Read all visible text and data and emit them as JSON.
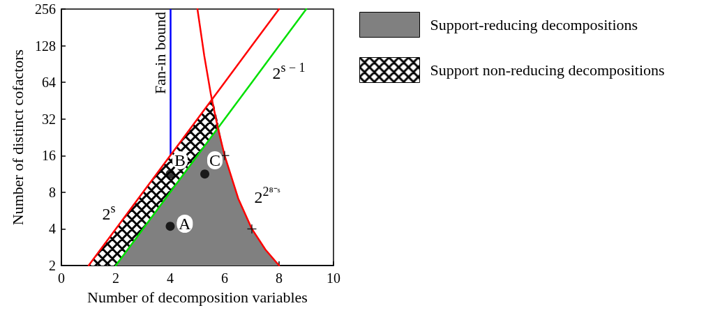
{
  "chart_data": {
    "type": "area",
    "xlabel": "Number of decomposition variables",
    "ylabel": "Number of distinct cofactors",
    "xlim": [
      0,
      10
    ],
    "xticks": [
      0,
      2,
      4,
      6,
      8,
      10
    ],
    "ylim": [
      2,
      256
    ],
    "yticks": [
      2,
      4,
      8,
      16,
      32,
      64,
      128,
      256
    ],
    "log": "y",
    "grid": false,
    "legend": "right",
    "series": [
      {
        "name": "Support-reducing decompositions",
        "color": "#808080",
        "x": [
          2,
          3,
          4,
          5,
          5.79,
          6,
          6.5,
          7,
          7.5,
          8
        ],
        "values": [
          2,
          4,
          8,
          16,
          27.7,
          16,
          7.1,
          4,
          2.7,
          2
        ]
      },
      {
        "name": "Support non-reducing decompositions",
        "color": "#000000",
        "x": [
          1,
          2,
          3,
          4,
          5,
          5.56,
          5.79
        ],
        "values": [
          2,
          4,
          8,
          16,
          32,
          47,
          27.7
        ]
      },
      {
        "type": "line",
        "name": "2$^{s}$",
        "color": "#ff0000",
        "x": [
          1,
          2,
          3,
          4,
          5,
          6,
          7,
          8
        ],
        "values": [
          2,
          4,
          8,
          16,
          32,
          64,
          128,
          256
        ]
      },
      {
        "type": "line",
        "name": "2$^{s − 1}$",
        "color": "#00e000",
        "x": [
          2,
          3,
          4,
          5,
          6,
          7,
          8,
          9
        ],
        "values": [
          2,
          4,
          8,
          16,
          32,
          64,
          128,
          256
        ]
      },
      {
        "type": "line",
        "name": "2$^{2⁸⁻ˢ}$",
        "color": "#ff0000",
        "x": [
          5,
          5.25,
          5.5,
          5.75,
          6,
          6.5,
          7,
          7.5,
          8
        ],
        "values": [
          256,
          106,
          50,
          27,
          16,
          7.1,
          4,
          2.7,
          2
        ]
      },
      {
        "type": "scatter",
        "color": "#000000",
        "marker": "circle",
        "x": [
          4,
          4,
          5.27
        ],
        "values": [
          4.2,
          11.3,
          11.3
        ]
      },
      {
        "type": "scatter",
        "color": "#000000",
        "marker": "cross",
        "x": [
          6,
          7
        ],
        "values": [
          16,
          4
        ]
      }
    ],
    "ref_lines": [
      {
        "axis": "x",
        "value": 4,
        "label": "Fan-in bound",
        "color": "#0000ff"
      }
    ],
    "annotations": [
      {
        "text": "A",
        "x": 4.53,
        "y": 4.4
      },
      {
        "text": "B",
        "x": 4.36,
        "y": 14.7
      },
      {
        "text": "C",
        "x": 5.64,
        "y": 14.7
      }
    ]
  }
}
